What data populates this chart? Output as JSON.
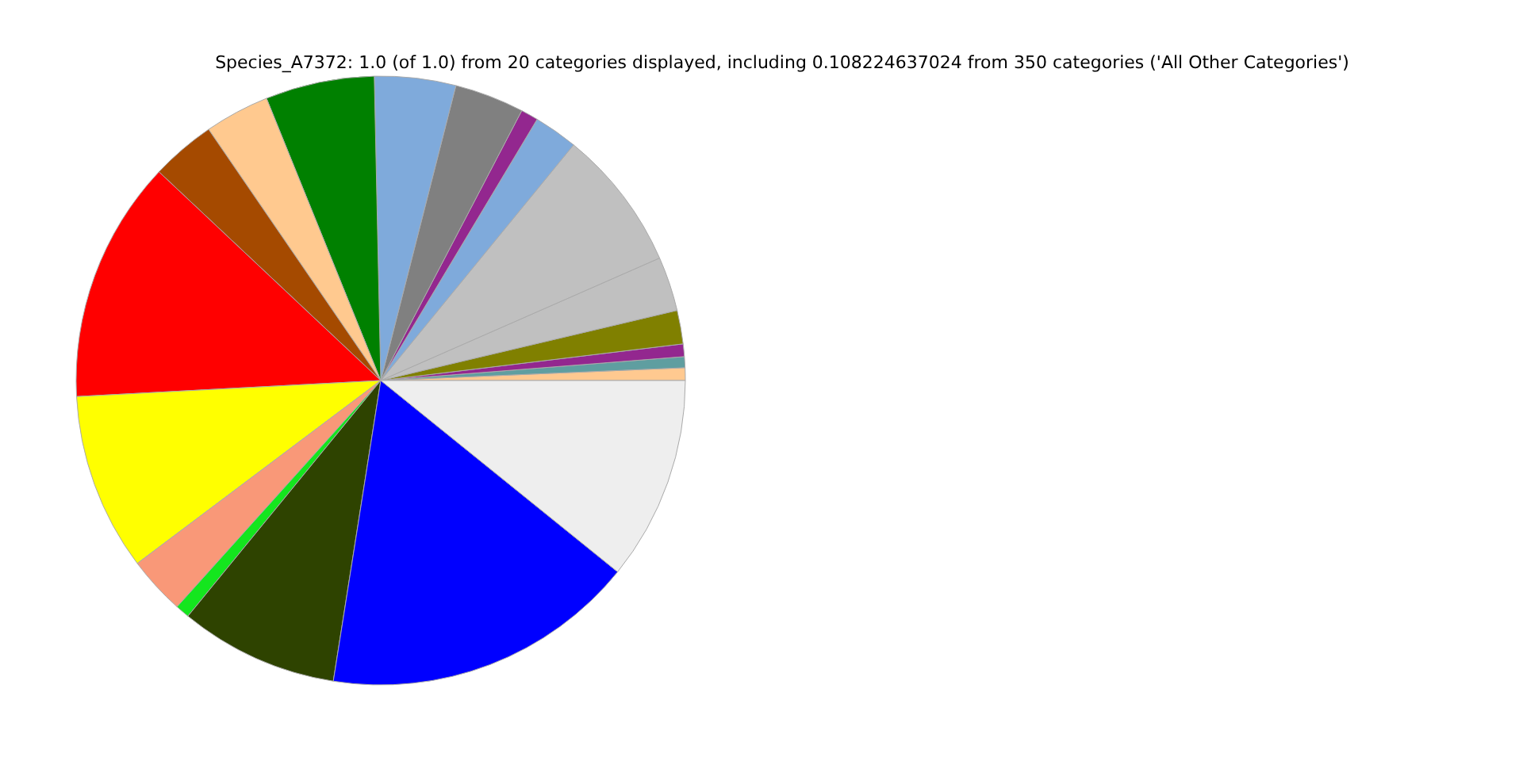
{
  "chart_data": {
    "type": "pie",
    "title": "Species_A7372: 1.0 (of 1.0) from 20 categories displayed, including 0.108224637024 from 350 categories ('All Other Categories')",
    "categories": [
      null,
      null,
      null,
      null,
      null,
      null,
      null,
      null,
      null,
      null,
      null,
      null,
      null,
      null,
      null,
      null,
      null,
      null,
      null,
      null
    ],
    "values": [
      0.67,
      0.58,
      0.67,
      1.78,
      2.89,
      7.5,
      2.33,
      0.92,
      3.69,
      4.31,
      5.78,
      3.44,
      3.42,
      12.86,
      9.42,
      3.08,
      0.75,
      8.42,
      16.67,
      10.82
    ],
    "colors": [
      "#ffc990",
      "#5f9ea0",
      "#93278f",
      "#808000",
      "#c0c0c0",
      "#c0c0c0",
      "#7faadb",
      "#93278f",
      "#808080",
      "#7faadb",
      "#008000",
      "#ffc98f",
      "#a54a00",
      "#ff0000",
      "#ffff00",
      "#f99878",
      "#14e61e",
      "#2e4300",
      "#0000ff",
      "#eeeeee"
    ]
  }
}
